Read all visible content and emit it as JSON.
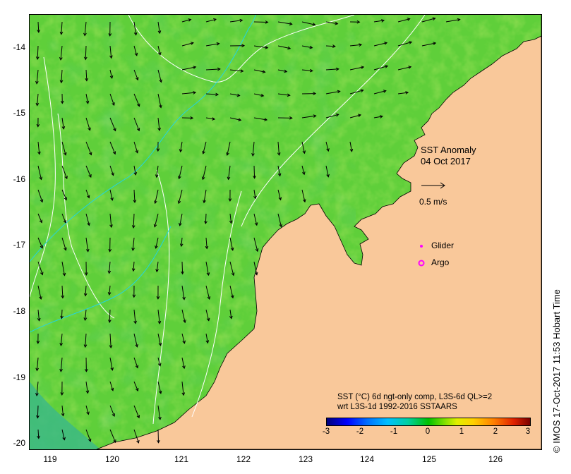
{
  "map": {
    "title_line1": "SST Anomaly",
    "title_line2": "04 Oct 2017",
    "vector_scale_label": "0.5 m/s",
    "legend": [
      {
        "label": "Glider",
        "color": "#ff00ff",
        "symbol": "filled-dot"
      },
      {
        "label": "Argo",
        "color": "#ff00ff",
        "symbol": "ring"
      }
    ],
    "lat_labels": [
      "-14",
      "-15",
      "-16",
      "-17",
      "-18",
      "-19",
      "-20"
    ],
    "lon_labels": [
      "119",
      "120",
      "121",
      "122",
      "123",
      "124",
      "125",
      "126"
    ],
    "land_color": "#f9c89a",
    "ocean_color": "#6fd63a"
  },
  "colorbar": {
    "title_line1": "SST (°C) 6d ngt-only comp, L3S-6d QL>=2",
    "title_line2": "wrt L3S-1d 1992-2016 SSTAARS",
    "tick_labels": [
      "-3",
      "-2",
      "-1",
      "0",
      "1",
      "2",
      "3"
    ]
  },
  "credit": "© IMOS 17-Oct-2017 11:53 Hobart Time"
}
